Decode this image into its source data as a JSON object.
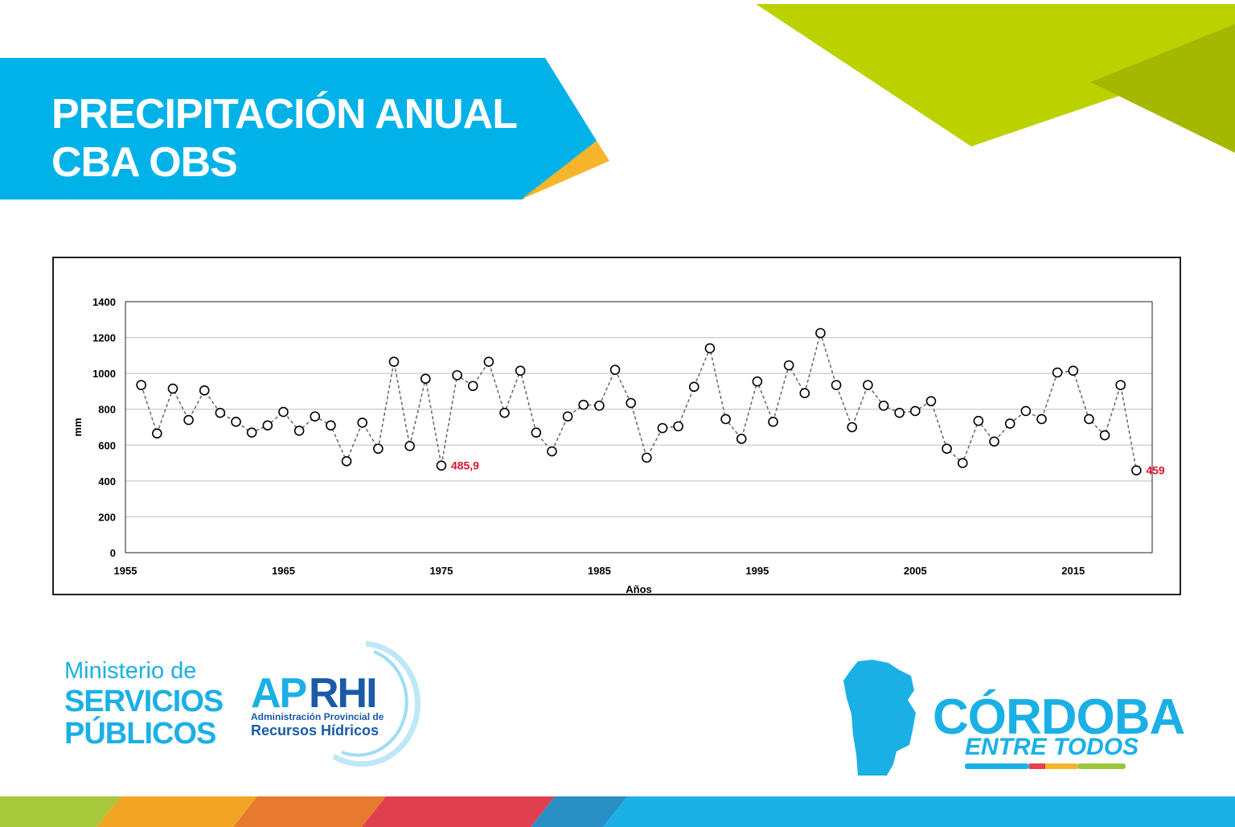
{
  "header": {
    "title_line1": "PRECIPITACIÓN ANUAL",
    "title_line2": "CBA OBS"
  },
  "colors": {
    "banner_blue": "#00b2e8",
    "accent_orange": "#f7b52c",
    "accent_green": "#bcd200",
    "accent_green_dark": "#a5b800",
    "brand_blue": "#1ab0e6",
    "brand_dark_blue": "#1a5aa6",
    "annotation_red": "#e0102a"
  },
  "chart_data": {
    "type": "line",
    "title": "",
    "xlabel": "Años",
    "ylabel": "mm",
    "xlim": [
      1955,
      2020
    ],
    "ylim": [
      0,
      1400
    ],
    "x_ticks": [
      "1955",
      "1965",
      "1975",
      "1985",
      "1995",
      "2005",
      "2015"
    ],
    "y_ticks": [
      "0",
      "200",
      "400",
      "600",
      "800",
      "1000",
      "1200",
      "1400"
    ],
    "grid": "horizontal",
    "series": [
      {
        "x": [
          1956,
          1957,
          1958,
          1959,
          1960,
          1961,
          1962,
          1963,
          1964,
          1965,
          1966,
          1967,
          1968,
          1969,
          1970,
          1971,
          1972,
          1973,
          1974,
          1975,
          1976,
          1977,
          1978,
          1979,
          1980,
          1981,
          1982,
          1983,
          1984,
          1985,
          1986,
          1987,
          1988,
          1989,
          1990,
          1991,
          1992,
          1993,
          1994,
          1995,
          1996,
          1997,
          1998,
          1999,
          2000,
          2001,
          2002,
          2003,
          2004,
          2005,
          2006,
          2007,
          2008,
          2009,
          2010,
          2011,
          2012,
          2013,
          2014,
          2015,
          2016,
          2017,
          2018,
          2019
        ],
        "values": [
          935,
          665,
          915,
          740,
          905,
          780,
          730,
          670,
          710,
          785,
          680,
          760,
          710,
          510,
          725,
          580,
          1065,
          595,
          970,
          485.9,
          990,
          930,
          1065,
          780,
          1015,
          670,
          565,
          760,
          825,
          820,
          1020,
          835,
          530,
          695,
          705,
          925,
          1140,
          745,
          635,
          955,
          730,
          1045,
          890,
          1225,
          935,
          700,
          935,
          820,
          780,
          790,
          845,
          580,
          500,
          735,
          620,
          720,
          790,
          745,
          1005,
          1015,
          745,
          655,
          935,
          459
        ]
      }
    ],
    "annotations": [
      {
        "x": 1975,
        "y": 485.9,
        "text": "485,9"
      },
      {
        "x": 2019,
        "y": 459,
        "text": "459"
      }
    ]
  },
  "footer": {
    "ministerio_line1": "Ministerio de",
    "ministerio_line2": "SERVICIOS",
    "ministerio_line3": "PÚBLICOS",
    "aprhi_ap": "AP",
    "aprhi_rhi": "RHI",
    "aprhi_sub1": "Administración Provincial de",
    "aprhi_sub2": "Recursos Hídricos",
    "cordoba_title": "CÓRDOBA",
    "cordoba_subtitle": "ENTRE TODOS"
  }
}
